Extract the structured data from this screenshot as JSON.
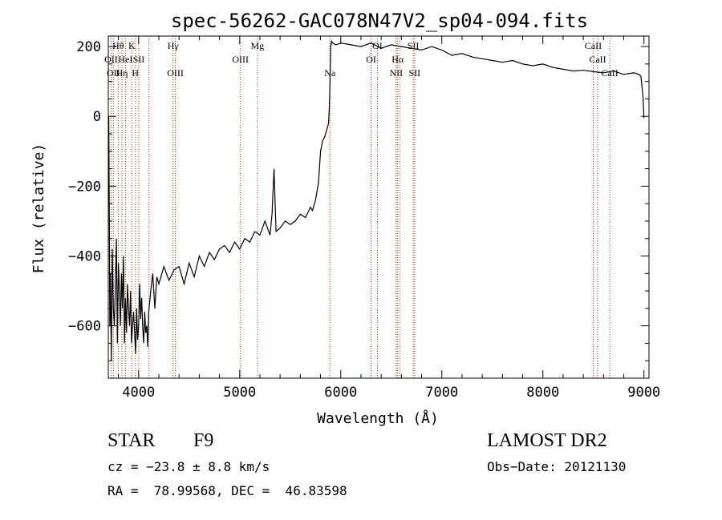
{
  "chart_data": {
    "type": "line",
    "title": "spec-56262-GAC078N47V2_sp04-094.fits",
    "xlabel": "Wavelength (Å)",
    "ylabel": "Flux (relative)",
    "xlim": [
      3700,
      9050
    ],
    "ylim": [
      -750,
      230
    ],
    "x_ticks": [
      4000,
      5000,
      6000,
      7000,
      8000,
      9000
    ],
    "x_tick_labels": [
      "4000",
      "5000",
      "6000",
      "7000",
      "8000",
      "9000"
    ],
    "y_ticks": [
      -600,
      -400,
      -200,
      0,
      200
    ],
    "y_tick_labels": [
      "−600",
      "−400",
      "−200",
      "0",
      "200"
    ],
    "grid": false,
    "line_color": "#000000",
    "marker_line_color": "#cc2200",
    "series": [
      {
        "x": [
          3700,
          3705,
          3710,
          3715,
          3720,
          3730,
          3740,
          3750,
          3760,
          3770,
          3780,
          3790,
          3800,
          3810,
          3820,
          3830,
          3840,
          3850,
          3860,
          3870,
          3880,
          3890,
          3900,
          3910,
          3920,
          3930,
          3940,
          3950,
          3960,
          3970,
          3980,
          3990,
          4000,
          4010,
          4020,
          4030,
          4040,
          4050,
          4060,
          4070,
          4080,
          4090,
          4100,
          4120,
          4140,
          4160,
          4180,
          4200,
          4250,
          4300,
          4350,
          4400,
          4450,
          4500,
          4550,
          4600,
          4650,
          4700,
          4750,
          4800,
          4850,
          4900,
          4950,
          5000,
          5050,
          5100,
          5150,
          5200,
          5250,
          5300,
          5320,
          5340,
          5360,
          5400,
          5450,
          5500,
          5550,
          5600,
          5650,
          5700,
          5720,
          5750,
          5780,
          5800,
          5820,
          5840,
          5860,
          5880,
          5890,
          5900,
          5910,
          5920,
          5950,
          6000,
          6100,
          6200,
          6300,
          6400,
          6500,
          6600,
          6700,
          6800,
          6900,
          7000,
          7100,
          7200,
          7300,
          7400,
          7500,
          7600,
          7700,
          7800,
          7900,
          8000,
          8100,
          8200,
          8300,
          8400,
          8500,
          8600,
          8700,
          8800,
          8900,
          8950,
          8970,
          8990,
          9000
        ],
        "y": [
          -100,
          0,
          -300,
          -600,
          -450,
          -700,
          -380,
          -550,
          -600,
          -480,
          -350,
          -650,
          -420,
          -500,
          -600,
          -450,
          -550,
          -400,
          -650,
          -520,
          -620,
          -480,
          -550,
          -600,
          -500,
          -650,
          -600,
          -560,
          -620,
          -680,
          -550,
          -640,
          -600,
          -480,
          -580,
          -520,
          -600,
          -650,
          -560,
          -620,
          -600,
          -660,
          -560,
          -500,
          -450,
          -550,
          -460,
          -480,
          -430,
          -470,
          -440,
          -430,
          -480,
          -420,
          -460,
          -400,
          -430,
          -390,
          -410,
          -380,
          -370,
          -390,
          -360,
          -380,
          -350,
          -360,
          -330,
          -340,
          -300,
          -340,
          -280,
          -150,
          -330,
          -320,
          -300,
          -310,
          -300,
          -280,
          -290,
          -260,
          -270,
          -240,
          -190,
          -100,
          -70,
          -60,
          -40,
          -20,
          50,
          200,
          215,
          210,
          205,
          210,
          205,
          200,
          210,
          195,
          205,
          200,
          195,
          190,
          200,
          190,
          175,
          180,
          170,
          165,
          160,
          155,
          160,
          150,
          145,
          150,
          140,
          135,
          130,
          132,
          128,
          125,
          130,
          120,
          125,
          120,
          115,
          60,
          -5
        ]
      }
    ],
    "line_markers": [
      {
        "wavelength": 3727,
        "label": "OII",
        "row": 2
      },
      {
        "wavelength": 3750,
        "label": "OII",
        "row": 3
      },
      {
        "wavelength": 3798,
        "label": "Hθ",
        "row": 1
      },
      {
        "wavelength": 3835,
        "label": "Hη",
        "row": 3
      },
      {
        "wavelength": 3870,
        "label": "HeI",
        "row": 2
      },
      {
        "wavelength": 3933,
        "label": "K",
        "row": 1
      },
      {
        "wavelength": 3968,
        "label": "H",
        "row": 3
      },
      {
        "wavelength": 4001,
        "label": "SII",
        "row": 2
      },
      {
        "wavelength": 4102,
        "label": "",
        "row": 0
      },
      {
        "wavelength": 4341,
        "label": "Hγ",
        "row": 1
      },
      {
        "wavelength": 4363,
        "label": "OIII",
        "row": 3
      },
      {
        "wavelength": 5007,
        "label": "OIII",
        "row": 2
      },
      {
        "wavelength": 5175,
        "label": "Mg",
        "row": 1
      },
      {
        "wavelength": 5893,
        "label": "Na",
        "row": 3
      },
      {
        "wavelength": 6300,
        "label": "OI",
        "row": 2
      },
      {
        "wavelength": 6363,
        "label": "OI",
        "row": 1
      },
      {
        "wavelength": 6548,
        "label": "NII",
        "row": 3
      },
      {
        "wavelength": 6563,
        "label": "Hα",
        "row": 2
      },
      {
        "wavelength": 6583,
        "label": "",
        "row": 0
      },
      {
        "wavelength": 6717,
        "label": "SII",
        "row": 1
      },
      {
        "wavelength": 6731,
        "label": "SII",
        "row": 3
      },
      {
        "wavelength": 8498,
        "label": "CaII",
        "row": 1
      },
      {
        "wavelength": 8542,
        "label": "CaII",
        "row": 2
      },
      {
        "wavelength": 8662,
        "label": "CaII",
        "row": 3
      }
    ]
  },
  "info": {
    "object_class": "STAR",
    "subclass": "F9",
    "velocity": "cz = −23.8 ± 8.8 km/s",
    "coords": "RA =  78.99568, DEC =  46.83598",
    "survey": "LAMOST DR2",
    "obs_date": "Obs−Date: 20121130"
  }
}
